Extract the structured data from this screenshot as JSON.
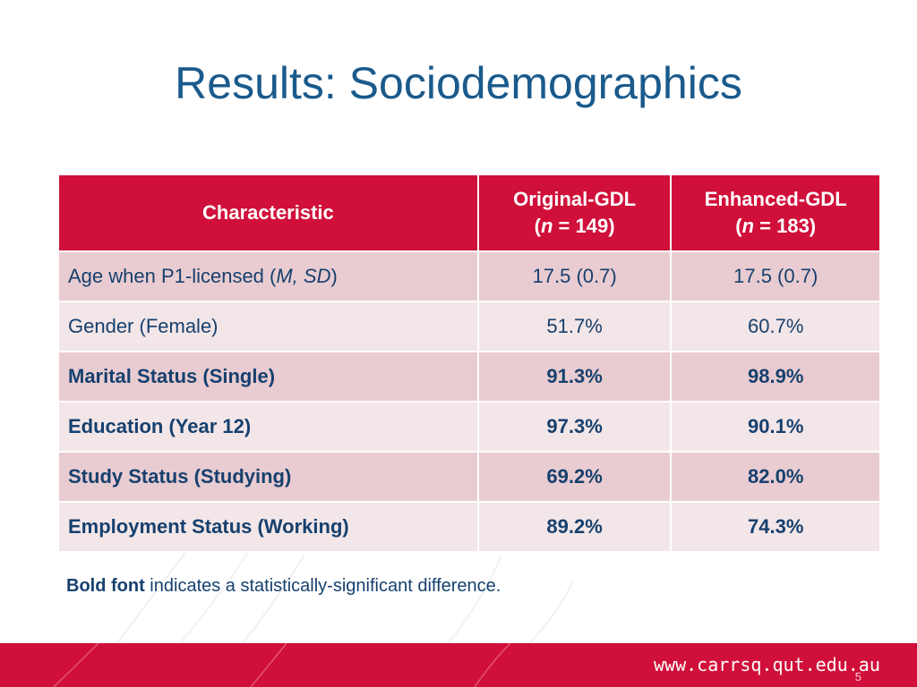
{
  "slide": {
    "title": "Results: Sociodemographics",
    "table": {
      "headers": {
        "characteristic": "Characteristic",
        "original": {
          "name": "Original-GDL",
          "n_prefix": "(",
          "n_italic": "n",
          "n_suffix": " = 149)"
        },
        "enhanced": {
          "name": "Enhanced-GDL",
          "n_prefix": "(",
          "n_italic": "n",
          "n_suffix": " = 183)"
        }
      },
      "rows": [
        {
          "label_pre": "Age when P1-licensed (",
          "label_italic": "M, SD",
          "label_post": ")",
          "original": "17.5 (0.7)",
          "enhanced": "17.5 (0.7)"
        },
        {
          "label": "Gender (Female)",
          "original": "51.7%",
          "enhanced": "60.7%"
        },
        {
          "label": "Marital Status (Single)",
          "original": "91.3%",
          "enhanced": "98.9%"
        },
        {
          "label": "Education (Year 12)",
          "original": "97.3%",
          "enhanced": "90.1%"
        },
        {
          "label": "Study Status (Studying)",
          "original": "69.2%",
          "enhanced": "82.0%"
        },
        {
          "label": "Employment Status (Working)",
          "original": "89.2%",
          "enhanced": "74.3%"
        }
      ]
    },
    "note": {
      "bold": "Bold font",
      "rest": " indicates a statistically-significant difference."
    },
    "footer": {
      "url": "www.carrsq.qut.edu.au",
      "page_number": "5"
    },
    "colors": {
      "title": "#1a5a8c",
      "accent": "#d0103a",
      "row_odd": "#e9ccd1",
      "row_even": "#f3e6e8",
      "text": "#16406e"
    }
  }
}
